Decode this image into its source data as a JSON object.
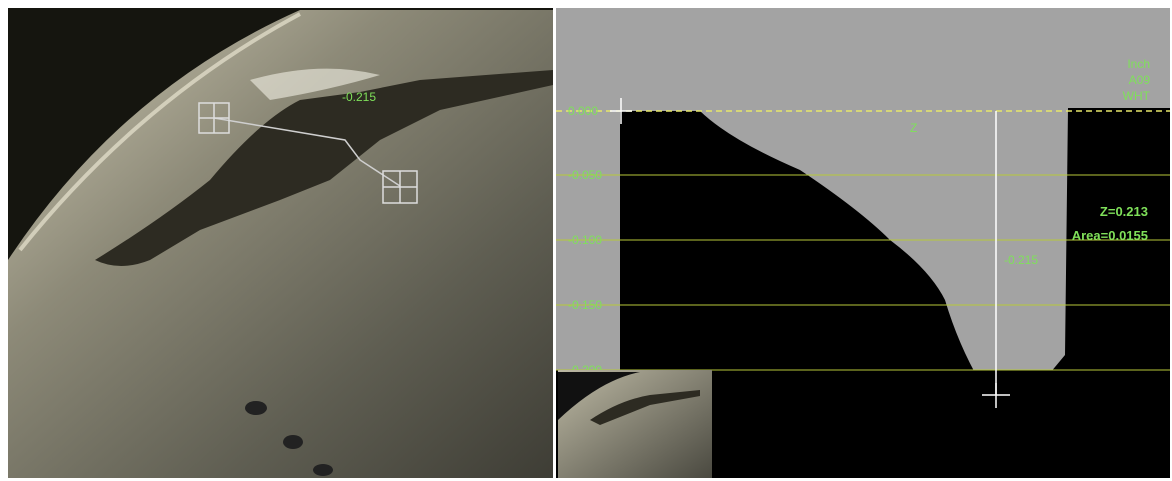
{
  "header": {
    "units": "Inch",
    "probe": "A09",
    "light": "WHT"
  },
  "left_view": {
    "measure_label": "-0.215"
  },
  "profile": {
    "axis_labels": [
      "0.000",
      "-0.050",
      "-0.100",
      "-0.150",
      "-0.200"
    ],
    "z_label": "Z",
    "depth_label": "-0.215"
  },
  "results": {
    "z": "Z=0.213",
    "area": "Area=0.0155"
  }
}
